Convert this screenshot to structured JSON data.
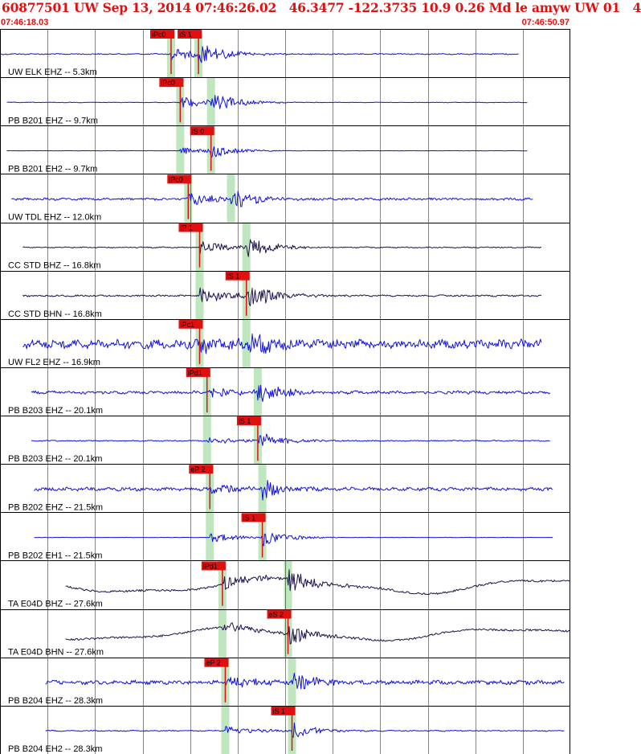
{
  "header": {
    "title": "60877501 UW Sep 13, 2014 07:46:26.02   46.3477 -122.3735 10.9 0.26 Md le amyw UW 01   4",
    "start_time": "07:46:18.03",
    "end_time": "07:46:50.97"
  },
  "colors": {
    "header_text": "#e01010",
    "trace_blue": "#1010e0",
    "trace_dark": "#20104a",
    "pick_box": "#e01010",
    "arrival_band": "#bfe6bf",
    "grid": "#000000"
  },
  "chart_data": {
    "type": "seismogram",
    "time_axis": {
      "start": "07:46:18.03",
      "end": "07:46:50.97",
      "grid": true,
      "gridlines": 12
    },
    "traces": [
      {
        "name": "UW ELK EHZ -- 5.3km",
        "color": "blue",
        "p_pick": "iPc0",
        "s_pick": "iS 1",
        "p_t": 0.3,
        "s_t": 0.348,
        "amp": 0.12,
        "noise": 0.02,
        "end": 0.91,
        "start": 0.0
      },
      {
        "name": "PB B201 EHZ -- 9.7km",
        "color": "blue",
        "p_pick": "iPc0",
        "s_pick": "",
        "p_t": 0.316,
        "s_t": 0.37,
        "amp": 0.11,
        "noise": 0.01,
        "end": 0.925,
        "start": 0.012
      },
      {
        "name": "PB B201 EH2 -- 9.7km",
        "color": "blue",
        "p_pick": "",
        "s_pick": "iS 0",
        "p_t": 0.316,
        "s_t": 0.37,
        "amp": 0.07,
        "noise": 0.005,
        "end": 0.925,
        "start": 0.012
      },
      {
        "name": "UW TDL EHZ -- 12.0km",
        "color": "blue",
        "p_pick": "iPc0",
        "s_pick": "",
        "p_t": 0.33,
        "s_t": 0.405,
        "amp": 0.11,
        "noise": 0.04,
        "end": 0.935,
        "start": 0.02
      },
      {
        "name": "CC STD BHZ -- 16.8km",
        "color": "dark",
        "p_pick": "iP 1",
        "s_pick": "",
        "p_t": 0.35,
        "s_t": 0.432,
        "amp": 0.12,
        "noise": 0.02,
        "end": 0.95,
        "start": 0.04
      },
      {
        "name": "CC STD BHN -- 16.8km",
        "color": "dark",
        "p_pick": "",
        "s_pick": "iS 1",
        "p_t": 0.35,
        "s_t": 0.432,
        "amp": 0.15,
        "noise": 0.03,
        "end": 0.95,
        "start": 0.04
      },
      {
        "name": "UW FL2 EHZ -- 16.9km",
        "color": "blue",
        "p_pick": "iPc1",
        "s_pick": "",
        "p_t": 0.35,
        "s_t": 0.432,
        "amp": 0.15,
        "noise": 0.15,
        "end": 0.95,
        "start": 0.04
      },
      {
        "name": "PB B203 EHZ -- 20.1km",
        "color": "blue",
        "p_pick": "iPd1",
        "s_pick": "",
        "p_t": 0.363,
        "s_t": 0.452,
        "amp": 0.12,
        "noise": 0.05,
        "end": 0.965,
        "start": 0.055
      },
      {
        "name": "PB B203 EH2 -- 20.1km",
        "color": "blue",
        "p_pick": "",
        "s_pick": "iS 1",
        "p_t": 0.363,
        "s_t": 0.452,
        "amp": 0.09,
        "noise": 0.02,
        "end": 0.965,
        "start": 0.055
      },
      {
        "name": "PB B202 EHZ -- 21.5km",
        "color": "blue",
        "p_pick": "eP 2",
        "s_pick": "",
        "p_t": 0.368,
        "s_t": 0.46,
        "amp": 0.11,
        "noise": 0.06,
        "end": 0.97,
        "start": 0.06
      },
      {
        "name": "PB B202 EH1 -- 21.5km",
        "color": "blue",
        "p_pick": "",
        "s_pick": "iS 1",
        "p_t": 0.368,
        "s_t": 0.46,
        "amp": 0.09,
        "noise": 0.005,
        "end": 0.97,
        "start": 0.06
      },
      {
        "name": "TA E04D BHZ -- 27.6km",
        "color": "dark",
        "p_pick": "iPd1",
        "s_pick": "",
        "p_t": 0.39,
        "s_t": 0.505,
        "amp": 0.14,
        "noise": 0.3,
        "end": 1.0,
        "start": 0.115
      },
      {
        "name": "TA E04D BHN -- 27.6km",
        "color": "dark",
        "p_pick": "",
        "s_pick": "eS 2",
        "p_t": 0.39,
        "s_t": 0.505,
        "amp": 0.12,
        "noise": 0.25,
        "end": 1.0,
        "start": 0.115
      },
      {
        "name": "PB B204 EHZ -- 28.3km",
        "color": "blue",
        "p_pick": "eP 2",
        "s_pick": "",
        "p_t": 0.395,
        "s_t": 0.512,
        "amp": 0.12,
        "noise": 0.07,
        "end": 0.99,
        "start": 0.08
      },
      {
        "name": "PB B204 EH2 -- 28.3km",
        "color": "blue",
        "p_pick": "",
        "s_pick": "iS 1",
        "p_t": 0.395,
        "s_t": 0.512,
        "amp": 0.09,
        "noise": 0.02,
        "end": 0.99,
        "start": 0.08
      }
    ]
  }
}
